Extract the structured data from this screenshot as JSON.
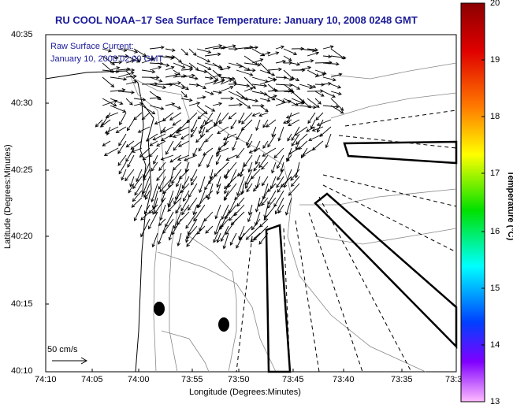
{
  "title": "RU COOL  NOAA–17  Sea Surface Temperature:  January 10, 2008 0248 GMT",
  "overlay": {
    "line1": "Raw Surface Current:",
    "line2": "January 10, 2008 02:00 GMT",
    "scale_label": "50 cm/s"
  },
  "axes": {
    "xlabel": "Longitude (Degrees:Minutes)",
    "ylabel": "Latitude (Degrees:Minutes)",
    "x_ticks": [
      "74:10",
      "74:05",
      "74:00",
      "73:55",
      "73:50",
      "73:45",
      "73:40",
      "73:35",
      "73:3"
    ],
    "y_ticks": [
      "40:35",
      "40:30",
      "40:25",
      "40:20",
      "40:15",
      "40:10"
    ]
  },
  "colorbar": {
    "title": "Temperature (°C)",
    "ticks": [
      "20",
      "19",
      "18",
      "17",
      "16",
      "15",
      "14",
      "13"
    ],
    "colors": [
      "#8b0000",
      "#ff0000",
      "#ff8000",
      "#ffff00",
      "#00ff00",
      "#00ffff",
      "#0000ff",
      "#ff66ff"
    ]
  }
}
